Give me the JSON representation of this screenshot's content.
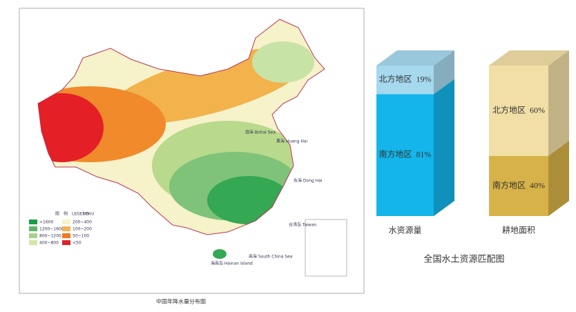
{
  "map": {
    "caption": "中国年降水量分布图",
    "legend_title": "图　例　LEGEND",
    "legend_unit": "(mm)",
    "legend_items": [
      ">1600",
      "1200~1600",
      "800~1200",
      "400~800",
      "200~400",
      "100~200",
      "50~100",
      "<50"
    ],
    "sea_labels": [
      "渤海 Bohai Sea",
      "黄海 Huang Hai",
      "东海 Dong Hai",
      "南海 South China Sea",
      "台湾岛 Taiwan"
    ],
    "island_label": "海南岛 Hainan Island"
  },
  "chart_data": {
    "type": "bar",
    "stacked": true,
    "three_d": true,
    "title": "全国水土资源匹配图",
    "categories": [
      "水资源量",
      "耕地面积"
    ],
    "series": [
      {
        "name": "南方地区",
        "colors": [
          "#13b5ea",
          "#d7b248"
        ],
        "values": [
          81,
          40
        ],
        "value_labels": [
          "81%",
          "40%"
        ]
      },
      {
        "name": "北方地区",
        "colors": [
          "#a6d8ee",
          "#f1dfa6"
        ],
        "values": [
          19,
          60
        ],
        "value_labels": [
          "19%",
          "60%"
        ]
      }
    ]
  }
}
